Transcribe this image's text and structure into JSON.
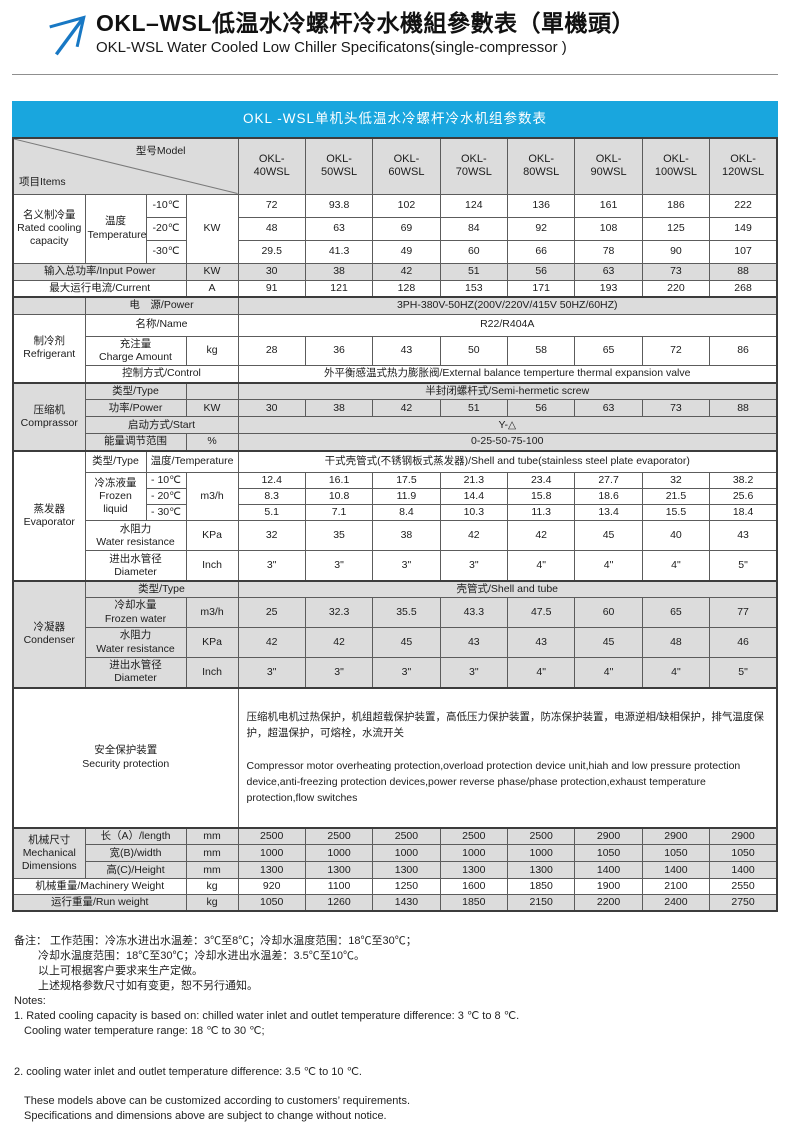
{
  "header": {
    "title_cn": "OKL–WSL低温水冷螺杆冷水機組參數表（單機頭）",
    "title_en": "OKL-WSL Water Cooled Low Chiller Specificatons(single-compressor )"
  },
  "colors": {
    "banner_blue": "#19a6de",
    "logo_blue": "#1878c4",
    "row_gray": "#dcdcdc"
  },
  "table": {
    "banner": "OKL -WSL单机头低温水冷螺杆冷水机组参数表",
    "corner": {
      "items": "项目Items",
      "model": "型号Model"
    },
    "models": [
      "OKL-\n40WSL",
      "OKL-\n50WSL",
      "OKL-\n60WSL",
      "OKL-\n70WSL",
      "OKL-\n80WSL",
      "OKL-\n90WSL",
      "OKL-\n100WSL",
      "OKL-\n120WSL"
    ],
    "sections": {
      "capacity": {
        "label": "名义制冷量\nRated cooling capacity",
        "temp_label": "温度\nTemperature",
        "unit": "KW",
        "rows": [
          {
            "temp": "-10℃",
            "values": [
              72,
              93.8,
              102,
              124,
              136,
              161,
              186,
              222
            ]
          },
          {
            "temp": "-20℃",
            "values": [
              48,
              63,
              69,
              84,
              92,
              108,
              125,
              149
            ]
          },
          {
            "temp": "-30℃",
            "values": [
              29.5,
              41.3,
              49,
              60,
              66,
              78,
              90,
              107
            ]
          }
        ]
      },
      "input_power": {
        "label": "输入总功率/Input Power",
        "unit": "KW",
        "values": [
          30,
          38,
          42,
          51,
          56,
          63,
          73,
          88
        ]
      },
      "current": {
        "label": "最大运行电流/Current",
        "unit": "A",
        "values": [
          91,
          121,
          128,
          153,
          171,
          193,
          220,
          268
        ]
      },
      "power": {
        "label": "电　源/Power",
        "value": "3PH-380V-50HZ(200V/220V/415V  50HZ/60HZ)"
      },
      "refrigerant": {
        "label": "制冷剂\nRefrigerant",
        "name_label": "名称/Name",
        "name_value": "R22/R404A",
        "charge_label": "充注量\nCharge Amount",
        "charge_unit": "kg",
        "charge_values": [
          28,
          36,
          43,
          50,
          58,
          65,
          72,
          86
        ],
        "control_label": "控制方式/Control",
        "control_value": "外平衡感温式热力膨胀阀/External balance temperture thermal expansion valve"
      },
      "compressor": {
        "label": "压缩机\nComprassor",
        "type_label": "类型/Type",
        "type_value": "半封闭螺杆式/Semi-hermetic screw",
        "power_label": "功率/Power",
        "power_unit": "KW",
        "power_values": [
          30,
          38,
          42,
          51,
          56,
          63,
          73,
          88
        ],
        "start_label": "启动方式/Start",
        "start_value": "Y-△",
        "energy_label": "能量调节范围",
        "energy_unit": "%",
        "energy_value": "0-25-50-75-100"
      },
      "evaporator": {
        "label": "蒸发器\nEvaporator",
        "type_label": "类型/Type",
        "temp_header": "温度/Temperature",
        "type_value": "干式壳管式(不锈钢板式蒸发器)/Shell and tube(stainless steel plate evaporator)",
        "frozen_label": "冷冻液量\nFrozen liquid",
        "frozen_unit": "m3/h",
        "frozen_rows": [
          {
            "temp": "- 10℃",
            "values": [
              12.4,
              16.1,
              17.5,
              21.3,
              23.4,
              27.7,
              32,
              38.2
            ]
          },
          {
            "temp": "- 20℃",
            "values": [
              8.3,
              10.8,
              11.9,
              14.4,
              15.8,
              18.6,
              21.5,
              25.6
            ]
          },
          {
            "temp": "- 30℃",
            "values": [
              5.1,
              7.1,
              8.4,
              10.3,
              11.3,
              13.4,
              15.5,
              18.4
            ]
          }
        ],
        "resistance_label": "水阻力\nWater resistance",
        "resistance_unit": "KPa",
        "resistance_values": [
          32,
          35,
          38,
          42,
          42,
          45,
          40,
          43
        ],
        "diameter_label": "进出水管径\nDiameter",
        "diameter_unit": "Inch",
        "diameter_values": [
          "3\"",
          "3\"",
          "3\"",
          "3\"",
          "4\"",
          "4\"",
          "4\"",
          "5\""
        ]
      },
      "condenser": {
        "label": "冷凝器\nCondenser",
        "type_label": "类型/Type",
        "type_value": "壳管式/Shell and tube",
        "water_label": "冷却水量\nFrozen water",
        "water_unit": "m3/h",
        "water_values": [
          25,
          32.3,
          35.5,
          43.3,
          47.5,
          60,
          65,
          77
        ],
        "resistance_label": "水阻力\nWater resistance",
        "resistance_unit": "KPa",
        "resistance_values": [
          42,
          42,
          45,
          43,
          43,
          45,
          48,
          46
        ],
        "diameter_label": "进出水管径\nDiameter",
        "diameter_unit": "Inch",
        "diameter_values": [
          "3\"",
          "3\"",
          "3\"",
          "3\"",
          "4\"",
          "4\"",
          "4\"",
          "5\""
        ]
      },
      "security": {
        "label": "安全保护装置\nSecurity protection",
        "text_cn": "压缩机电机过热保护，机组超载保护装置，高低压力保护装置，防冻保护装置，电源逆相/缺相保护，排气温度保护，超温保护，可熔栓，水流开关",
        "text_en": "Compressor motor overheating protection,overload protection device unit,hiah and low pressure protection device,anti-freezing protection devices,power reverse phase/phase protection,exhaust temperature protection,flow switches"
      },
      "mechanical": {
        "label": "机械尺寸\nMechanical\nDimensions",
        "rows": [
          {
            "label": "长（A）/length",
            "unit": "mm",
            "values": [
              2500,
              2500,
              2500,
              2500,
              2500,
              2900,
              2900,
              2900
            ]
          },
          {
            "label": "宽(B)/width",
            "unit": "mm",
            "values": [
              1000,
              1000,
              1000,
              1000,
              1000,
              1050,
              1050,
              1050
            ]
          },
          {
            "label": "高(C)/Height",
            "unit": "mm",
            "values": [
              1300,
              1300,
              1300,
              1300,
              1300,
              1400,
              1400,
              1400
            ]
          }
        ]
      },
      "machinery_weight": {
        "label": "机械重量/Machinery Weight",
        "unit": "kg",
        "values": [
          920,
          1100,
          1250,
          1600,
          1850,
          1900,
          2100,
          2550
        ]
      },
      "run_weight": {
        "label": "运行重量/Run weight",
        "unit": "kg",
        "values": [
          1050,
          1260,
          1430,
          1850,
          2150,
          2200,
          2400,
          2750
        ]
      }
    }
  },
  "notes": {
    "cn1": "备注：  工作范围：冷冻水进出水温差：3℃至8℃；冷却水温度范围：18℃至30℃；",
    "cn2": "冷却水温度范围：18℃至30℃；冷却水进出水温差：3.5℃至10℃。",
    "cn3": "以上可根据客户要求来生产定做。",
    "cn4": "上述规格参数尺寸如有变更，恕不另行通知。",
    "en_header": "Notes:",
    "en1": "1. Rated cooling capacity is based on: chilled water inlet and outlet temperature  difference: 3 ℃ to 8 ℃.",
    "en2": "Cooling water temperature  range: 18 ℃ to 30 ℃;",
    "en3": "2. cooling water inlet and outlet temperature  difference: 3.5 ℃ to 10 ℃.",
    "en4": "These models above can be customized according to customers’  requirements.",
    "en5": "Specifications and dimensions above are subject to change without notice."
  }
}
